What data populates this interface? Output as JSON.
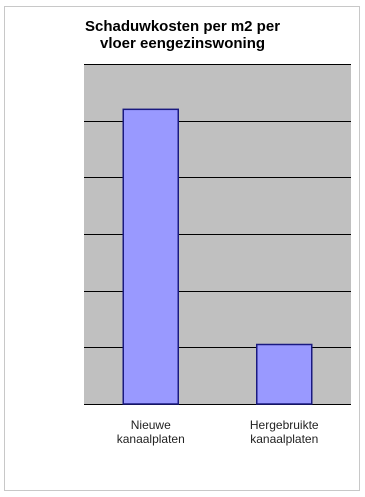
{
  "chart_data": {
    "type": "bar",
    "title_lines": [
      "Schaduwkosten per m2 per",
      "vloer eengezinswoning"
    ],
    "categories": [
      {
        "lines": [
          "Nieuwe",
          "kanaalplaten"
        ]
      },
      {
        "lines": [
          "Hergebruikte",
          "kanaalplaten"
        ]
      }
    ],
    "values": [
      5.2,
      1.05
    ],
    "ylim": [
      0,
      6
    ],
    "y_tick_step": 1,
    "xlabel": "",
    "ylabel": "",
    "grid": true,
    "legend": "none",
    "colors": {
      "bar_fill": "#9999ff",
      "bar_stroke": "#1a1a80",
      "plot_background": "#c0c0c0",
      "gridline": "#000000"
    }
  }
}
